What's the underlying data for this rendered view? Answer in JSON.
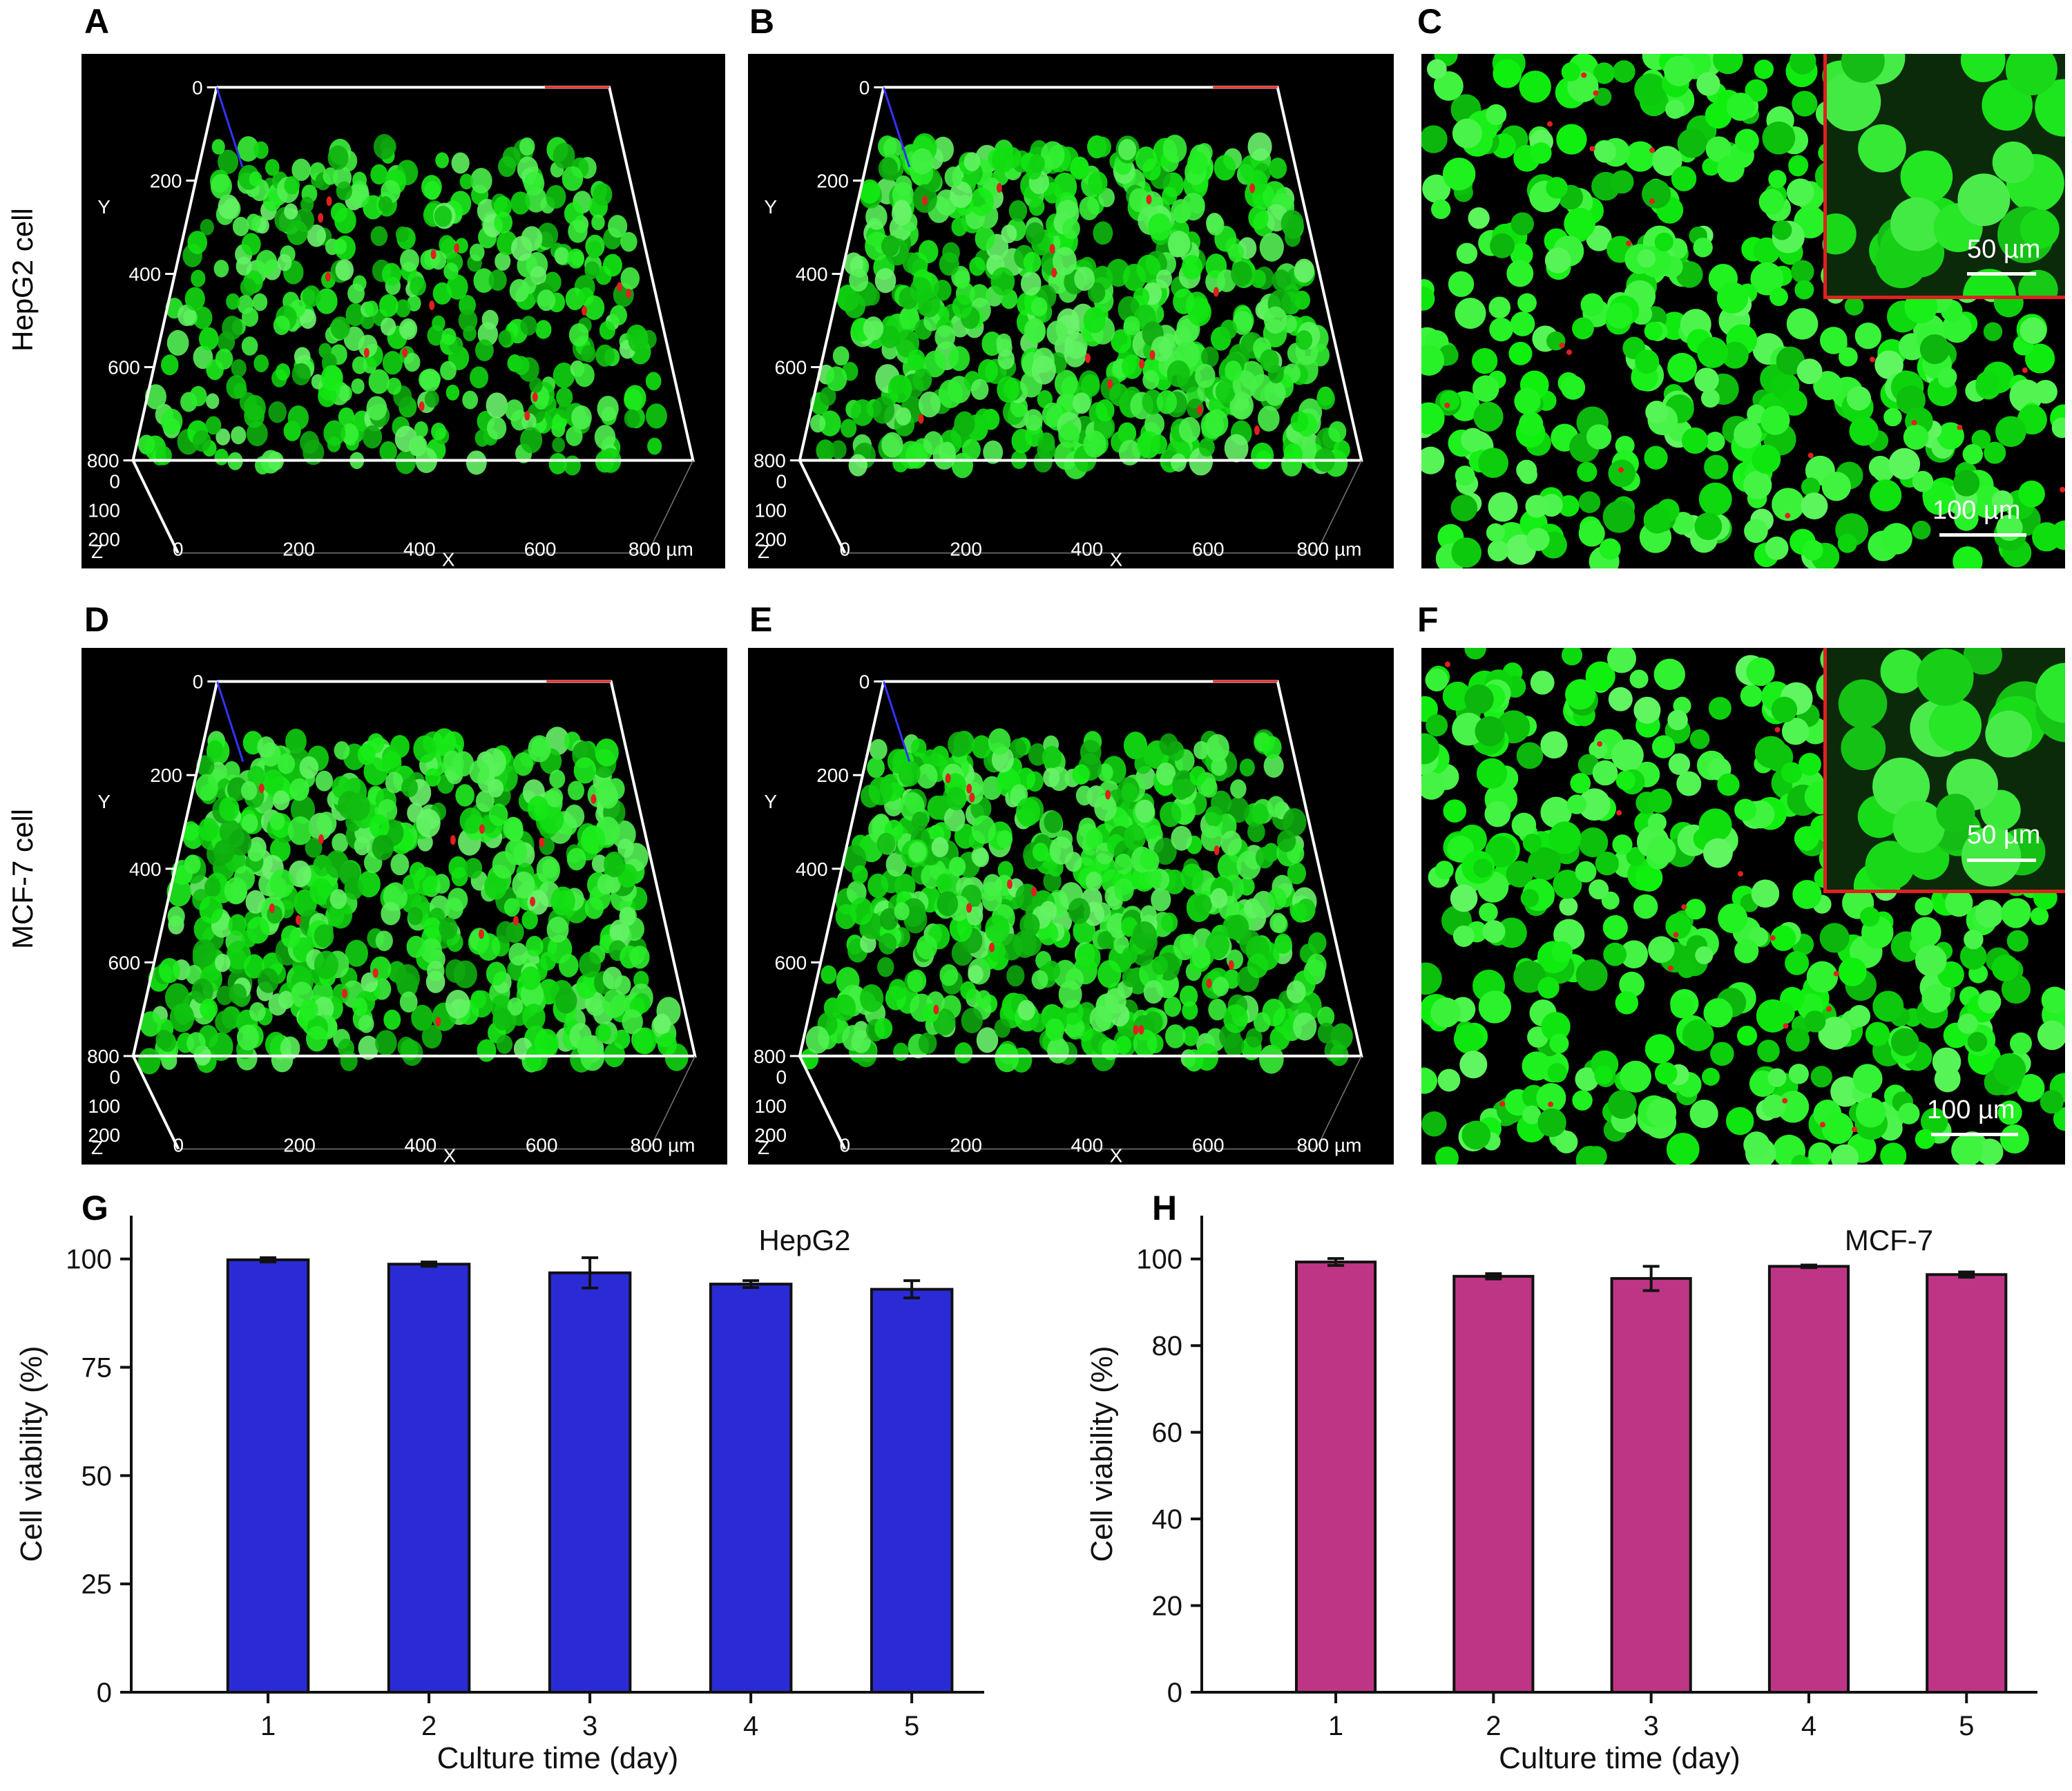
{
  "panels": {
    "A": "A",
    "B": "B",
    "C": "C",
    "D": "D",
    "E": "E",
    "F": "F",
    "G": "G",
    "H": "H"
  },
  "row_labels": {
    "row1": "HepG2 cell",
    "row2": "MCF-7 cell"
  },
  "axes3d": {
    "y_ticks": [
      "0",
      "200",
      "400",
      "600",
      "800"
    ],
    "z_ticks": [
      "0",
      "100",
      "200"
    ],
    "x_ticks": [
      "0",
      "200",
      "400",
      "600",
      "800 µm"
    ],
    "y_label": "Y",
    "z_label": "Z",
    "x_label": "X"
  },
  "scalebars": {
    "inset": "50 µm",
    "main": "100 µm"
  },
  "colors": {
    "cell_green": "#22d622",
    "dead_red": "#e02020",
    "hepg2_bar": "#2b2bd6",
    "mcf7_bar": "#bf3585"
  },
  "chart_data": [
    {
      "type": "bar",
      "panel": "G",
      "title": "HepG2",
      "xlabel": "Culture time (day)",
      "ylabel": "Cell viability (%)",
      "categories": [
        "1",
        "2",
        "3",
        "4",
        "5"
      ],
      "values": [
        99.8,
        98.8,
        96.8,
        94.2,
        93.0
      ],
      "errors": [
        0.5,
        0.5,
        3.5,
        0.8,
        2.0
      ],
      "ylim": [
        0,
        110
      ],
      "yticks": [
        0,
        25,
        50,
        75,
        100
      ]
    },
    {
      "type": "bar",
      "panel": "H",
      "title": "MCF-7",
      "xlabel": "Culture time (day)",
      "ylabel": "Cell viability (%)",
      "categories": [
        "1",
        "2",
        "3",
        "4",
        "5"
      ],
      "values": [
        99.3,
        96.0,
        95.5,
        98.3,
        96.4
      ],
      "errors": [
        0.8,
        0.6,
        2.8,
        0.3,
        0.6
      ],
      "ylim": [
        0,
        110
      ],
      "yticks": [
        0,
        20,
        40,
        60,
        80,
        100
      ]
    }
  ]
}
